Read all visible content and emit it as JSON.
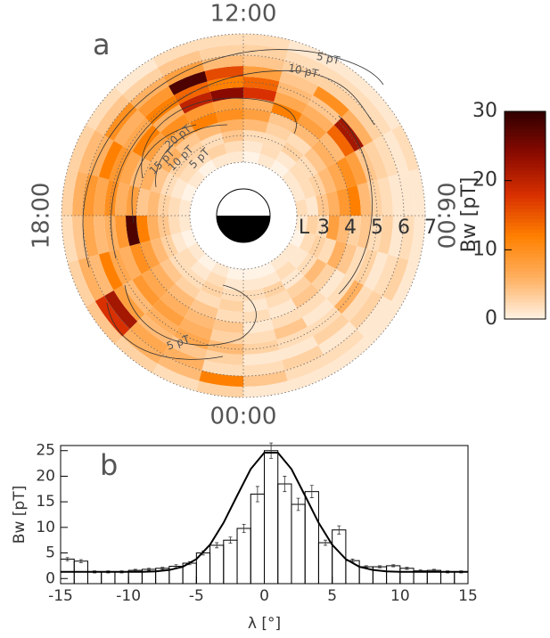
{
  "chart_data": [
    {
      "type": "polar-heatmap",
      "label": "a",
      "theta_bins": [
        0,
        1,
        2,
        3,
        4,
        5,
        6,
        7,
        8,
        9,
        10,
        11,
        12,
        13,
        14,
        15,
        16,
        17,
        18,
        19,
        20,
        21,
        22,
        23,
        24
      ],
      "rbins": [
        2.0,
        2.4,
        2.8,
        3.2,
        3.6,
        4.0,
        4.4,
        4.8,
        5.2,
        5.6,
        6.0,
        6.4,
        6.8
      ],
      "values": [
        [
          0,
          1,
          2,
          1,
          2,
          1,
          2,
          3,
          1,
          2,
          4,
          1
        ],
        [
          0,
          1,
          3,
          2,
          1,
          2,
          4,
          2,
          1,
          3,
          2,
          1
        ],
        [
          1,
          2,
          1,
          3,
          4,
          2,
          1,
          2,
          3,
          1,
          2,
          1
        ],
        [
          1,
          1,
          2,
          5,
          3,
          1,
          2,
          6,
          2,
          3,
          1,
          1
        ],
        [
          0,
          2,
          3,
          2,
          6,
          4,
          2,
          3,
          1,
          2,
          3,
          1
        ],
        [
          1,
          3,
          2,
          8,
          5,
          3,
          4,
          2,
          3,
          1,
          2,
          1
        ],
        [
          2,
          1,
          4,
          6,
          9,
          12,
          5,
          3,
          2,
          1,
          1,
          1
        ],
        [
          1,
          2,
          3,
          5,
          7,
          10,
          8,
          4,
          3,
          2,
          1,
          2
        ],
        [
          1,
          2,
          2,
          4,
          6,
          5,
          14,
          22,
          6,
          3,
          2,
          1
        ],
        [
          0,
          1,
          3,
          2,
          5,
          8,
          6,
          4,
          10,
          3,
          2,
          1
        ],
        [
          1,
          2,
          2,
          3,
          4,
          12,
          7,
          5,
          4,
          3,
          2,
          1
        ],
        [
          0,
          1,
          2,
          5,
          8,
          6,
          18,
          14,
          8,
          4,
          3,
          2
        ],
        [
          1,
          2,
          4,
          6,
          10,
          8,
          24,
          12,
          16,
          5,
          3,
          2
        ],
        [
          1,
          3,
          2,
          5,
          12,
          9,
          20,
          14,
          28,
          8,
          4,
          2
        ],
        [
          0,
          2,
          3,
          4,
          7,
          10,
          6,
          12,
          9,
          6,
          3,
          1
        ],
        [
          1,
          2,
          3,
          6,
          5,
          8,
          12,
          7,
          6,
          10,
          4,
          2
        ],
        [
          0,
          1,
          2,
          4,
          6,
          5,
          7,
          9,
          12,
          6,
          5,
          3
        ],
        [
          1,
          2,
          3,
          5,
          4,
          8,
          6,
          10,
          7,
          9,
          6,
          3
        ],
        [
          1,
          2,
          4,
          6,
          12,
          28,
          9,
          6,
          5,
          7,
          4,
          2
        ],
        [
          0,
          1,
          3,
          5,
          8,
          10,
          6,
          7,
          12,
          5,
          6,
          3
        ],
        [
          1,
          2,
          2,
          4,
          6,
          7,
          9,
          5,
          8,
          22,
          18,
          4
        ],
        [
          0,
          1,
          2,
          3,
          5,
          6,
          8,
          6,
          5,
          7,
          6,
          3
        ],
        [
          1,
          2,
          3,
          2,
          4,
          5,
          6,
          7,
          4,
          6,
          5,
          2
        ],
        [
          0,
          1,
          2,
          3,
          2,
          4,
          3,
          5,
          3,
          2,
          12,
          3
        ]
      ],
      "rlabel": "L",
      "rticks": [
        3,
        4,
        5,
        6,
        7
      ],
      "thetaticks": [
        {
          "value": 12,
          "label": "12:00"
        },
        {
          "value": 18,
          "label": "18:00"
        },
        {
          "value": 0,
          "label": "00:00"
        },
        {
          "value": 6,
          "label": "06:00"
        }
      ],
      "colormap": [
        "#fff3e6",
        "#ffb060",
        "#ff8000",
        "#d83000",
        "#8a0a00",
        "#300000"
      ],
      "colorbar": {
        "label": "Bw [pT]",
        "lim": [
          0,
          30
        ],
        "ticks": [
          0,
          10,
          20,
          30
        ]
      },
      "contour_labels": [
        "5 pT",
        "10 pT",
        "20 pT",
        "15 pT",
        "10 pT",
        "5 pT",
        "5 pT"
      ]
    },
    {
      "type": "histogram",
      "label": "b",
      "bins": [
        -15,
        -14,
        -13,
        -12,
        -11,
        -10,
        -9,
        -8,
        -7,
        -6,
        -5,
        -4,
        -3,
        -2,
        -1,
        0,
        1,
        2,
        3,
        4,
        5,
        6,
        7,
        8,
        9,
        10,
        11,
        12,
        13,
        14,
        15
      ],
      "values": [
        3.8,
        3.4,
        1.3,
        1.3,
        1.3,
        1.6,
        1.8,
        2.0,
        2.4,
        3.0,
        5.0,
        6.5,
        7.5,
        9.8,
        16.5,
        25,
        18.5,
        14.5,
        17.0,
        7.0,
        9.5,
        3.5,
        2.3,
        2.3,
        2.5,
        2.0,
        1.5,
        1.6,
        1.3,
        1.3
      ],
      "errors": [
        0.3,
        0.3,
        0.2,
        0.2,
        0.2,
        0.2,
        0.2,
        0.2,
        0.3,
        0.3,
        0.4,
        0.5,
        0.6,
        0.8,
        1.5,
        1.5,
        1.5,
        1.2,
        1.2,
        0.5,
        0.8,
        0.3,
        0.2,
        0.2,
        0.2,
        0.2,
        0.2,
        0.2,
        0.2,
        0.2
      ],
      "color": "#000000",
      "fit": {
        "x": [
          -15,
          -14,
          -13,
          -12,
          -11,
          -10,
          -9,
          -8,
          -7,
          -6,
          -5,
          -4,
          -3,
          -2,
          -1,
          0,
          1,
          2,
          3,
          4,
          5,
          6,
          7,
          8,
          9,
          10,
          11,
          12,
          13,
          14,
          15
        ],
        "y": [
          1.3,
          1.3,
          1.3,
          1.3,
          1.3,
          1.3,
          1.3,
          1.4,
          1.67,
          2.3,
          3.8,
          6.6,
          10.9,
          16.2,
          21.4,
          24.6,
          24.6,
          21.4,
          16.2,
          10.9,
          6.6,
          3.8,
          2.3,
          1.67,
          1.4,
          1.3,
          1.3,
          1.3,
          1.3,
          1.3,
          1.3
        ]
      },
      "xlim": [
        -15,
        15
      ],
      "ylim": [
        -1,
        26
      ],
      "xticks": [
        -15,
        -10,
        -5,
        0,
        5,
        10,
        15
      ],
      "yticks": [
        0,
        5,
        10,
        15,
        20,
        25
      ],
      "xlabel": "λ [°]",
      "ylabel": "Bw [pT]"
    }
  ]
}
